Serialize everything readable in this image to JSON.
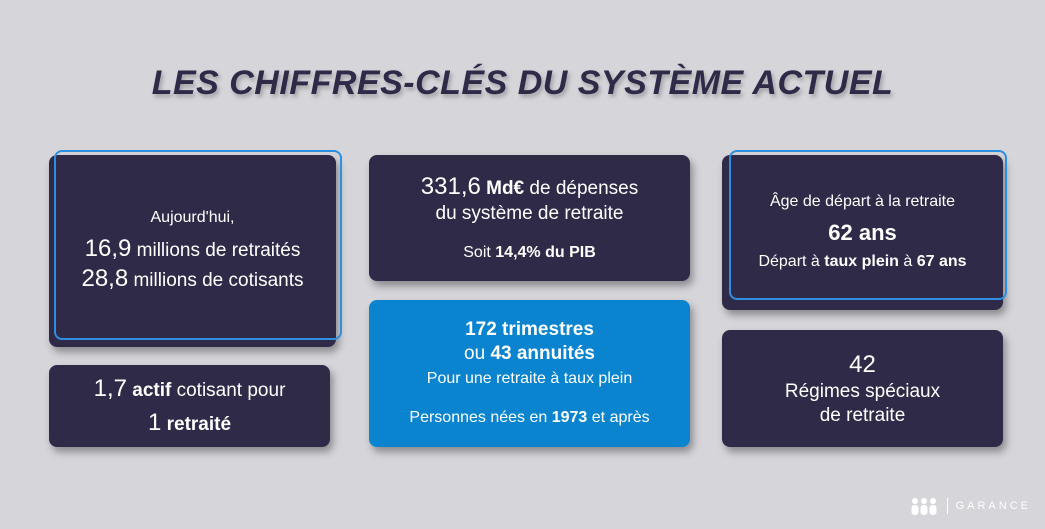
{
  "title": "LES CHIFFRES-CLÉS DU SYSTÈME ACTUEL",
  "card_retraites": {
    "intro": "Aujourd'hui,",
    "retraites_value": "16,9",
    "retraites_label": " millions de retraités",
    "cotisants_value": "28,8",
    "cotisants_label": " millions de cotisants"
  },
  "card_ratio": {
    "value": "1,7",
    "actif": " actif",
    "text": " cotisant pour",
    "retraite_value": "1",
    "retraite_label": " retraité"
  },
  "card_depenses": {
    "value": "331,6",
    "unit": " Md€",
    "text1": " de dépenses",
    "text2": "du système de retraite",
    "pib_prefix": "Soit ",
    "pib_value": "14,4% du PIB"
  },
  "card_trimestres": {
    "line1": "172 trimestres",
    "line2_prefix": "ou ",
    "line2_value": "43 annuités",
    "line3": "Pour une retraite à taux plein",
    "line4_prefix": "Personnes nées en ",
    "line4_value": "1973",
    "line4_suffix": " et après"
  },
  "card_age": {
    "line1": "Âge de départ à la retraite",
    "age": "62 ans",
    "line3_prefix": "Départ à ",
    "line3_bold1": "taux plein",
    "line3_mid": " à ",
    "line3_bold2": "67 ans"
  },
  "card_regimes": {
    "value": "42",
    "line2": "Régimes spéciaux",
    "line3": "de retraite"
  },
  "logo": {
    "text": "GARANCE"
  },
  "colors": {
    "dark_card": "#2f2a48",
    "blue_card": "#0a84cf",
    "outline": "#2d8fe0",
    "background": "#d5d5da"
  }
}
